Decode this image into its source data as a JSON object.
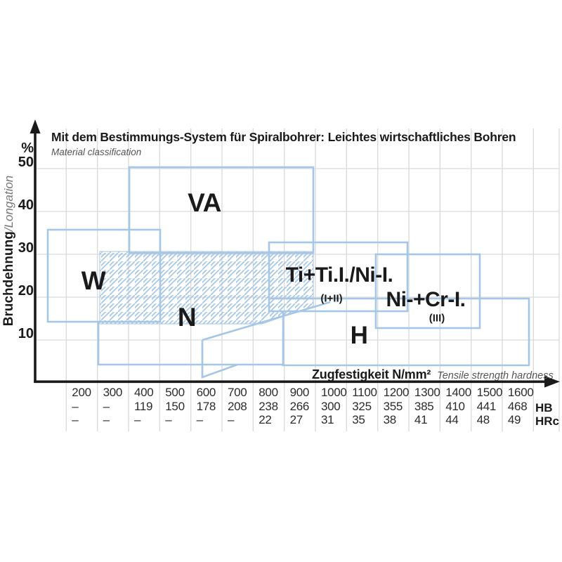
{
  "title": "Mit dem Bestimmungs-System für Spiralbohrer: Leichtes wirtschaftliches Bohren",
  "subtitle": "Material classification",
  "y_axis": {
    "percent_sign": "%",
    "ticks": [
      "50",
      "40",
      "30",
      "20",
      "10"
    ],
    "label_bold": "Bruchdehnung",
    "label_italic": "/Longation"
  },
  "x_axis": {
    "label_bold": "Zugfestigkeit N/mm²",
    "label_italic": "Tensile strength hardness"
  },
  "regions": {
    "va": "VA",
    "w": "W",
    "n": "N",
    "ti": "Ti+Ti.I./Ni-I.",
    "ti_sub": "(I+II)",
    "ni": "Ni-+Cr-I.",
    "ni_sub": "(III)",
    "h": "H"
  },
  "hardness_table": {
    "unit_labels": [
      "HB",
      "HRc"
    ],
    "columns": [
      {
        "tensile": "200",
        "hb": "–",
        "hrc": "–"
      },
      {
        "tensile": "300",
        "hb": "–",
        "hrc": "–"
      },
      {
        "tensile": "400",
        "hb": "119",
        "hrc": "–"
      },
      {
        "tensile": "500",
        "hb": "150",
        "hrc": "–"
      },
      {
        "tensile": "600",
        "hb": "178",
        "hrc": "–"
      },
      {
        "tensile": "700",
        "hb": "208",
        "hrc": "–"
      },
      {
        "tensile": "800",
        "hb": "238",
        "hrc": "22"
      },
      {
        "tensile": "900",
        "hb": "266",
        "hrc": "27"
      },
      {
        "tensile": "1000",
        "hb": "300",
        "hrc": "31"
      },
      {
        "tensile": "1100",
        "hb": "325",
        "hrc": "35"
      },
      {
        "tensile": "1200",
        "hb": "355",
        "hrc": "38"
      },
      {
        "tensile": "1300",
        "hb": "385",
        "hrc": "41"
      },
      {
        "tensile": "1400",
        "hb": "410",
        "hrc": "44"
      },
      {
        "tensile": "1500",
        "hb": "441",
        "hrc": "48"
      },
      {
        "tensile": "1600",
        "hb": "468",
        "hrc": "49"
      }
    ]
  },
  "chart_data": {
    "type": "area",
    "title": "Mit dem Bestimmungs-System für Spiralbohrer: Leichtes wirtschaftliches Bohren",
    "subtitle": "Material classification",
    "xlabel": "Zugfestigkeit N/mm² (Tensile strength hardness)",
    "ylabel": "Bruchdehnung/Longation %",
    "xlim": [
      50,
      1700
    ],
    "ylim": [
      0,
      55
    ],
    "grid": true,
    "regions": [
      {
        "label": "W",
        "x_nmm2": [
          90,
          450
        ],
        "y_pct": [
          14,
          36
        ],
        "style": "outline"
      },
      {
        "label": "VA",
        "x_nmm2": [
          350,
          940
        ],
        "y_pct": [
          30,
          50
        ],
        "style": "outline"
      },
      {
        "label": "N",
        "x_nmm2": [
          250,
          950
        ],
        "y_pct": [
          4,
          31
        ],
        "style": "outline+hatched-band"
      },
      {
        "label": "Ti+Ti.I./Ni-I. (I+II)",
        "x_nmm2": [
          800,
          1240
        ],
        "y_pct": [
          17,
          33
        ],
        "style": "outline"
      },
      {
        "label": "Ni-+Cr-I. (III)",
        "x_nmm2": [
          1140,
          1480
        ],
        "y_pct": [
          13,
          30
        ],
        "style": "outline"
      },
      {
        "label": "H",
        "x_nmm2": [
          800,
          1640
        ],
        "y_pct": [
          4,
          20
        ],
        "style": "outline"
      }
    ],
    "hardness_conversion": {
      "tensile_nmm2": [
        200,
        300,
        400,
        500,
        600,
        700,
        800,
        900,
        1000,
        1100,
        1200,
        1300,
        1400,
        1500,
        1600
      ],
      "HB": [
        null,
        null,
        119,
        150,
        178,
        208,
        238,
        266,
        300,
        325,
        355,
        385,
        410,
        441,
        468
      ],
      "HRc": [
        null,
        null,
        null,
        null,
        null,
        null,
        22,
        27,
        31,
        35,
        38,
        41,
        44,
        48,
        49
      ]
    }
  },
  "colors": {
    "region_outline": "#a6c6e6",
    "gridline": "#d9d9d9",
    "axis": "#1a1a1a",
    "muted_text": "#555555"
  }
}
